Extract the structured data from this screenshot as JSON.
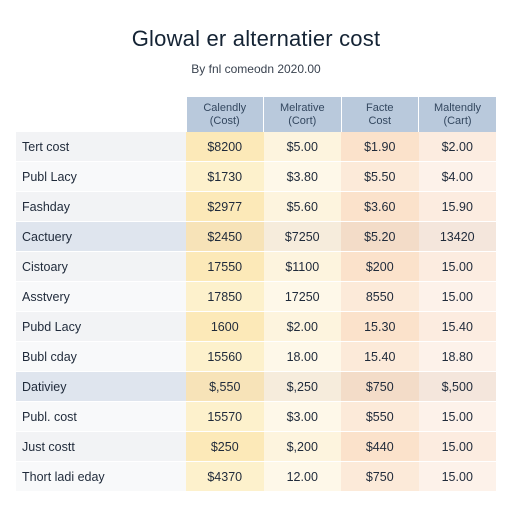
{
  "header": {
    "title": "Glowal er alternatier cost",
    "subtitle": "By fnl comeodn 2020.00"
  },
  "table": {
    "columns": [
      "Calendly\n(Cost)",
      "Melrative\n(Cort)",
      "Facte\nCost",
      "Maltendly\n(Cart)"
    ],
    "rows": [
      {
        "label": "Tert cost",
        "values": [
          "$8200",
          "$5.00",
          "$1.90",
          "$2.00"
        ]
      },
      {
        "label": "Publ Lacy",
        "values": [
          "$1730",
          "$3.80",
          "$5.50",
          "$4.00"
        ]
      },
      {
        "label": "Fashday",
        "values": [
          "$2977",
          "$5.60",
          "$3.60",
          "15.90"
        ]
      },
      {
        "label": "Cactuery",
        "values": [
          "$2450",
          "$7250",
          "$5.20",
          "13420"
        ]
      },
      {
        "label": "Cistoary",
        "values": [
          "17550",
          "$1100",
          "$200",
          "15.00"
        ]
      },
      {
        "label": "Asstvery",
        "values": [
          "17850",
          "17250",
          "8550",
          "15.00"
        ]
      },
      {
        "label": "Pubd Lacy",
        "values": [
          "1600",
          "$2.00",
          "15.30",
          "15.40"
        ]
      },
      {
        "label": "Bubl cday",
        "values": [
          "15560",
          "18.00",
          "15.40",
          "18.80"
        ]
      },
      {
        "label": "Dativiey",
        "values": [
          "$,550",
          "$,250",
          "$750",
          "$,500"
        ]
      },
      {
        "label": "Publ. cost",
        "values": [
          "15570",
          "$3.00",
          "$550",
          "15.00"
        ]
      },
      {
        "label": "Just costt",
        "values": [
          "$250",
          "$,200",
          "$440",
          "15.00"
        ]
      },
      {
        "label": "Thort ladi eday",
        "values": [
          "$4370",
          "12.00",
          "$750",
          "15.00"
        ]
      }
    ]
  }
}
